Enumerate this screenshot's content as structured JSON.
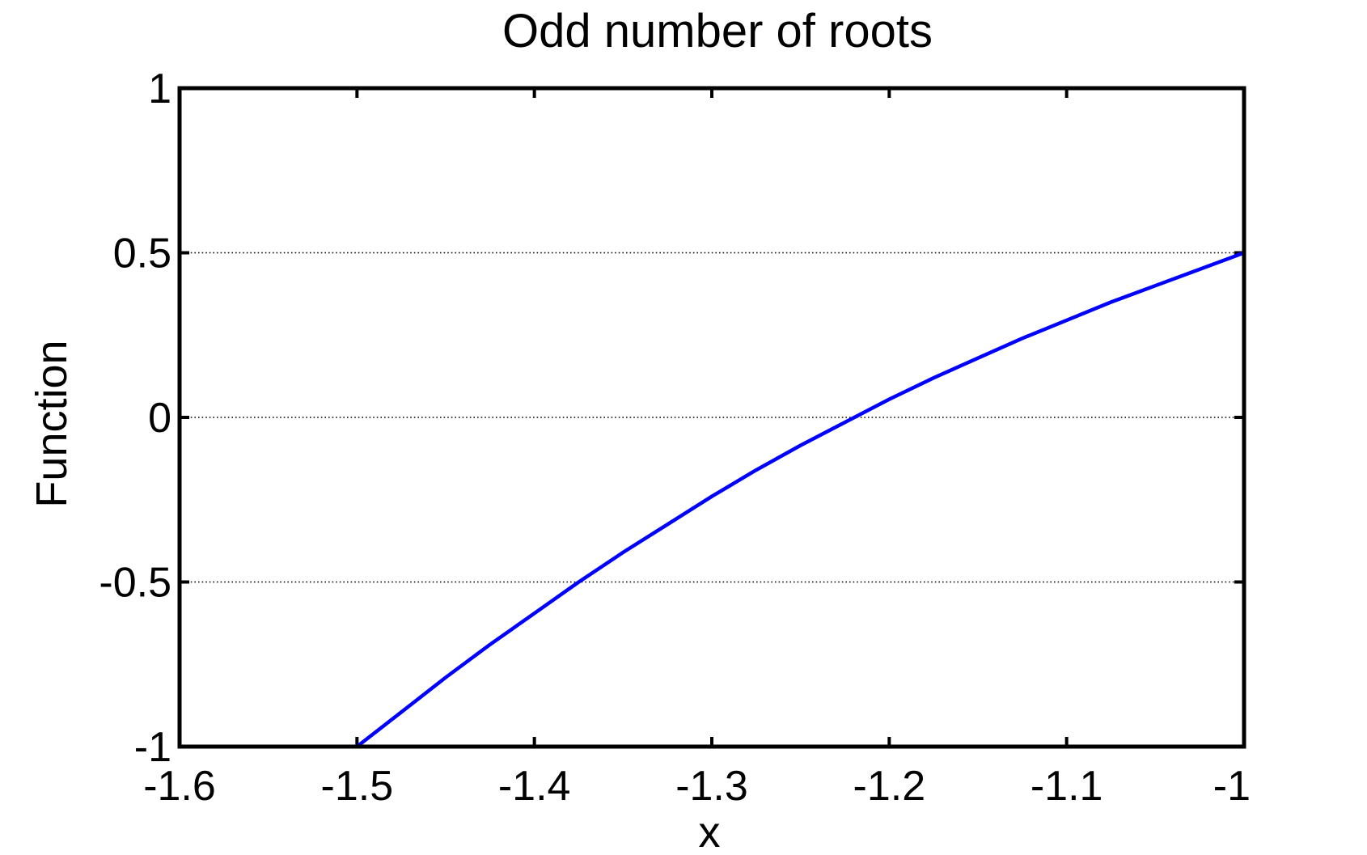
{
  "chart_data": {
    "type": "line",
    "title": "Odd number of roots",
    "xlabel": "x",
    "ylabel": "Function",
    "xlim": [
      -1.6,
      -1.0
    ],
    "ylim": [
      -1.0,
      1.0
    ],
    "xticks": [
      -1.6,
      -1.5,
      -1.4,
      -1.3,
      -1.2,
      -1.1,
      -1.0
    ],
    "xtick_labels": [
      "-1.6",
      "-1.5",
      "-1.4",
      "-1.3",
      "-1.2",
      "-1.1",
      "-1"
    ],
    "yticks": [
      -1.0,
      -0.5,
      0.0,
      0.5,
      1.0
    ],
    "ytick_labels": [
      "-1",
      "-0.5",
      "0",
      "0.5",
      "1"
    ],
    "grid": "y-dotted",
    "line_color": "#0000ff",
    "series": [
      {
        "x": [
          -1.5,
          -1.475,
          -1.45,
          -1.425,
          -1.4,
          -1.375,
          -1.35,
          -1.325,
          -1.3,
          -1.275,
          -1.25,
          -1.225,
          -1.2,
          -1.175,
          -1.15,
          -1.125,
          -1.1,
          -1.075,
          -1.05,
          -1.025,
          -1.0
        ],
        "y": [
          -1.0,
          -0.895,
          -0.79,
          -0.69,
          -0.595,
          -0.5,
          -0.41,
          -0.325,
          -0.24,
          -0.16,
          -0.085,
          -0.015,
          0.055,
          0.12,
          0.18,
          0.24,
          0.295,
          0.35,
          0.4,
          0.45,
          0.5
        ]
      }
    ]
  }
}
